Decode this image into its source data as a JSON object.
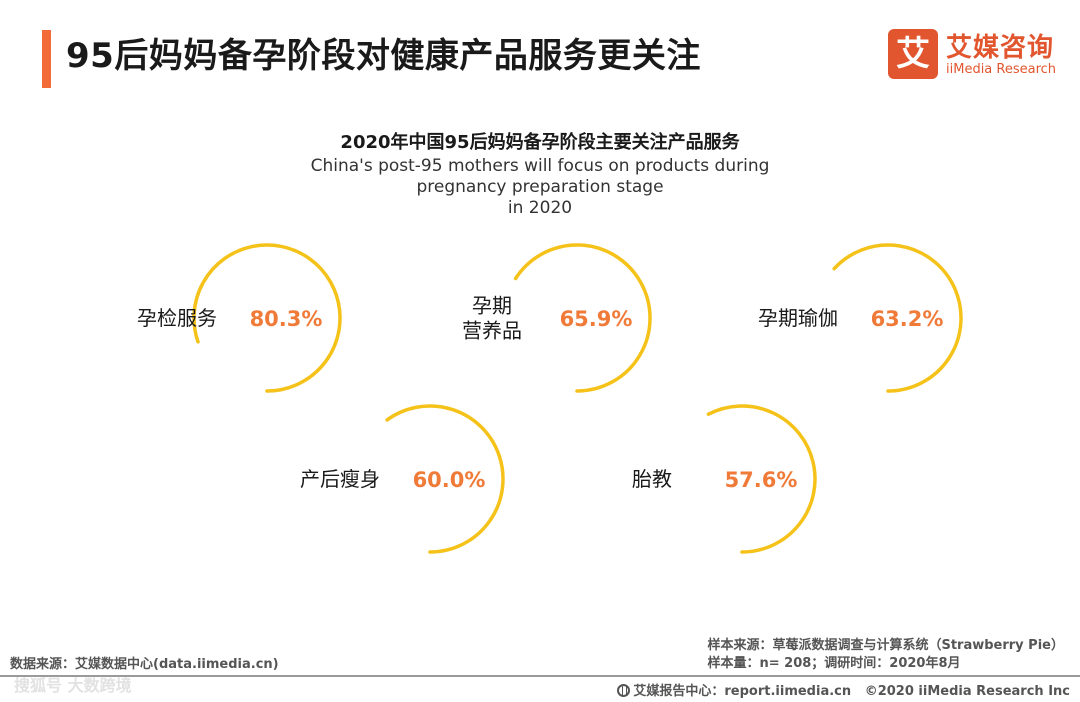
{
  "header": {
    "title": "95后妈妈备孕阶段对健康产品服务更关注",
    "accent_color": "#f26b38"
  },
  "logo": {
    "badge": "艾",
    "cn": "艾媒咨询",
    "en": "iiMedia Research",
    "color": "#e1562e"
  },
  "chart_data": {
    "type": "ring",
    "title": "2020年中国95后妈妈备孕阶段主要关注产品服务",
    "subtitle_lines": [
      "China's post-95 mothers will focus on products during pregnancy preparation stage",
      "in 2020"
    ],
    "unit": "%",
    "ring_color": "#f5c21a",
    "value_color": "#f07a38",
    "items": [
      {
        "label_lines": [
          "孕检服务"
        ],
        "value": 80.3
      },
      {
        "label_lines": [
          "孕期",
          "营养品"
        ],
        "value": 65.9
      },
      {
        "label_lines": [
          "孕期瑜伽"
        ],
        "value": 63.2
      },
      {
        "label_lines": [
          "产后瘦身"
        ],
        "value": 60.0
      },
      {
        "label_lines": [
          "胎教"
        ],
        "value": 57.6
      }
    ]
  },
  "footer": {
    "source_left": "数据来源：艾媒数据中心(data.iimedia.cn)",
    "sample_source": "样本来源：草莓派数据调查与计算系统（Strawberry Pie）",
    "sample_size": "样本量：n= 208；调研时间：2020年8月",
    "report_center": "艾媒报告中心：report.iimedia.cn",
    "copyright": "©2020  iiMedia Research  Inc",
    "watermark": "搜狐号 大数跨境"
  }
}
